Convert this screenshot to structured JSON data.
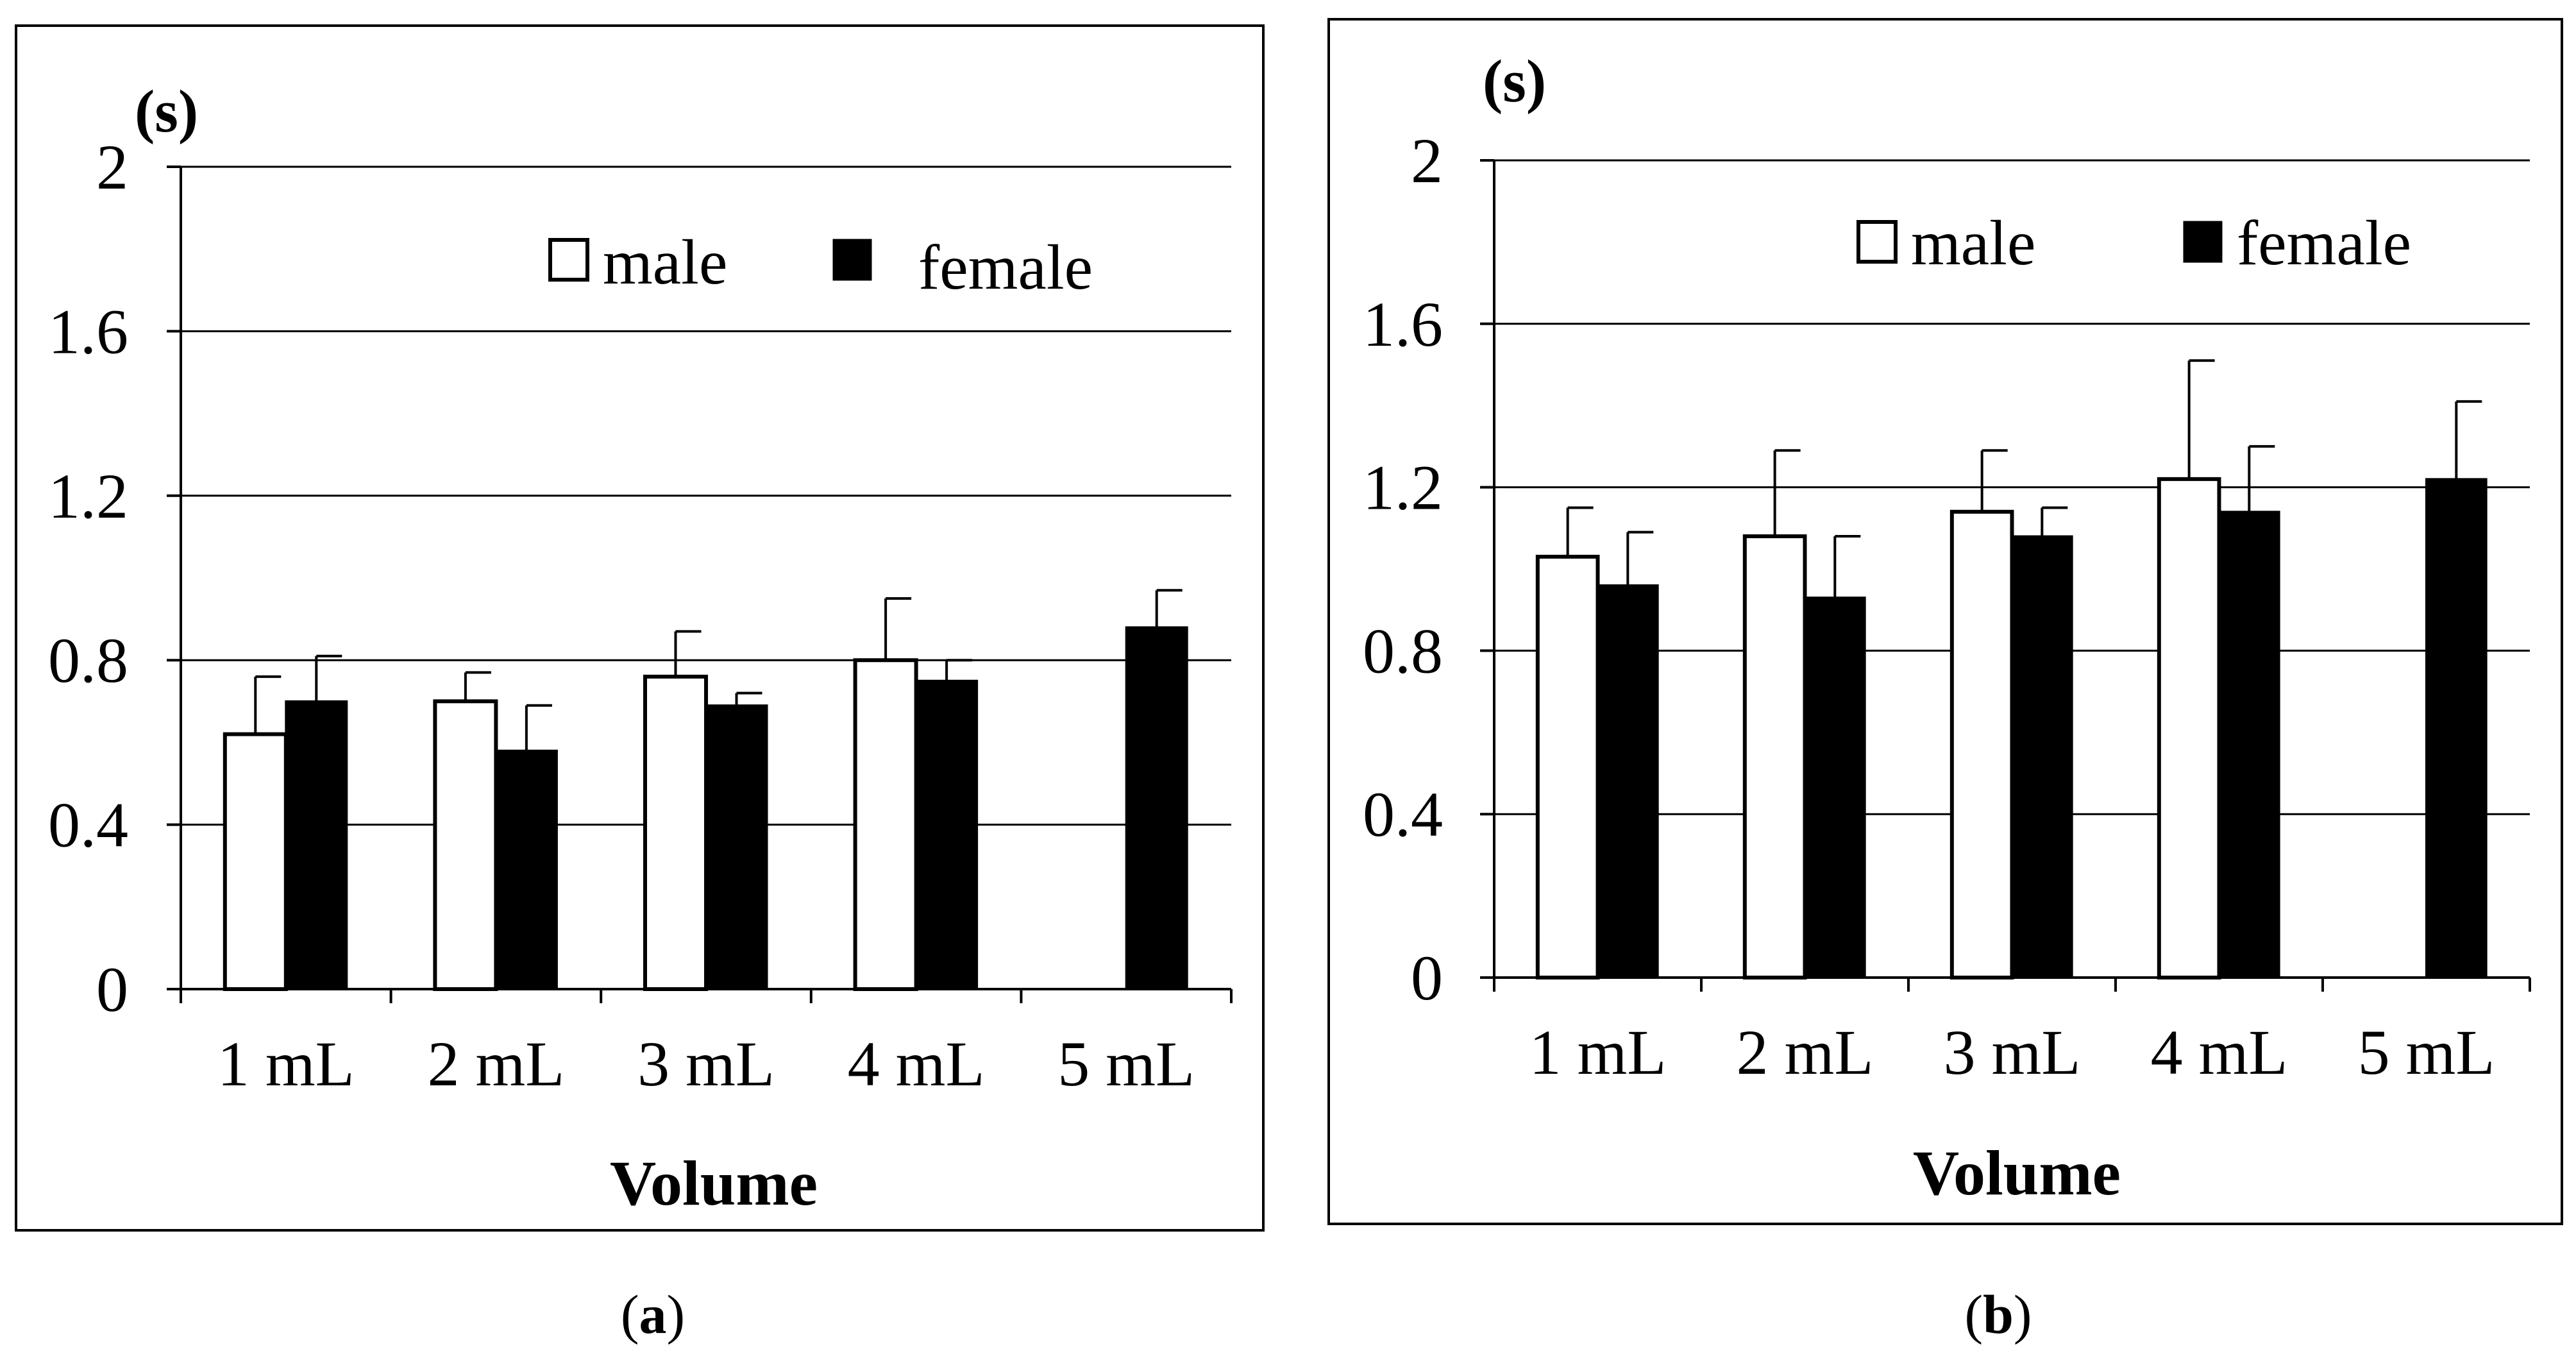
{
  "chart_data": [
    {
      "type": "bar",
      "panel_caption": {
        "open": "(",
        "letter": "a",
        "close": ")"
      },
      "ylabel": "(s)",
      "xlabel": "Volume",
      "categories": [
        "1 mL",
        "2 mL",
        "3 mL",
        "4 mL",
        "5 mL"
      ],
      "ylim": [
        0,
        2
      ],
      "yticks": [
        "0",
        "0.4",
        "0.8",
        "1.2",
        "1.6",
        "2"
      ],
      "ytick_values": [
        0,
        0.4,
        0.8,
        1.2,
        1.6,
        2
      ],
      "grid": true,
      "legend_placement": "top-right",
      "series": [
        {
          "name": "male",
          "color": "#ffffff",
          "values": [
            0.62,
            0.7,
            0.76,
            0.8,
            null
          ],
          "errors": [
            0.14,
            0.07,
            0.11,
            0.15,
            null
          ]
        },
        {
          "name": "female",
          "color": "#000000",
          "values": [
            0.7,
            0.58,
            0.69,
            0.75,
            0.88
          ],
          "errors": [
            0.11,
            0.11,
            0.03,
            0.05,
            0.09
          ]
        }
      ]
    },
    {
      "type": "bar",
      "panel_caption": {
        "open": "(",
        "letter": "b",
        "close": ")"
      },
      "ylabel": "(s)",
      "xlabel": "Volume",
      "categories": [
        "1 mL",
        "2 mL",
        "3 mL",
        "4 mL",
        "5 mL"
      ],
      "ylim": [
        0,
        2
      ],
      "yticks": [
        "0",
        "0.4",
        "0.8",
        "1.2",
        "1.6",
        "2"
      ],
      "ytick_values": [
        0,
        0.4,
        0.8,
        1.2,
        1.6,
        2
      ],
      "grid": true,
      "legend_placement": "top-right",
      "series": [
        {
          "name": "male",
          "color": "#ffffff",
          "values": [
            1.03,
            1.08,
            1.14,
            1.22,
            null
          ],
          "errors": [
            0.12,
            0.21,
            0.15,
            0.29,
            null
          ]
        },
        {
          "name": "female",
          "color": "#000000",
          "values": [
            0.96,
            0.93,
            1.08,
            1.14,
            1.22
          ],
          "errors": [
            0.13,
            0.15,
            0.07,
            0.16,
            0.19
          ]
        }
      ]
    }
  ]
}
